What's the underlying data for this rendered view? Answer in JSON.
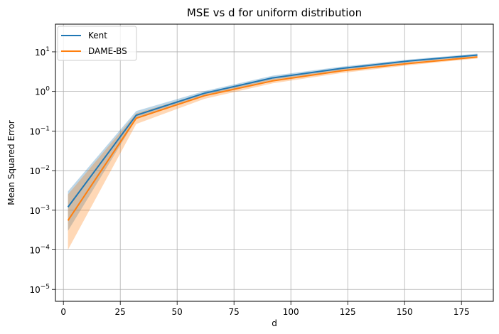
{
  "chart_data": {
    "type": "line",
    "title": "MSE vs d for uniform distribution",
    "xlabel": "d",
    "ylabel": "Mean Squared Error",
    "x": [
      2,
      32,
      62,
      92,
      122,
      152,
      182
    ],
    "xlim": [
      -3.5,
      189
    ],
    "ylim": [
      5e-06,
      50
    ],
    "yscale": "log",
    "xticks": [
      0,
      25,
      50,
      75,
      100,
      125,
      150,
      175
    ],
    "yticks": [
      1e-05,
      0.0001,
      0.001,
      0.01,
      0.1,
      1,
      10
    ],
    "ytick_labels": [
      {
        "base": "10",
        "exp": "−5"
      },
      {
        "base": "10",
        "exp": "−4"
      },
      {
        "base": "10",
        "exp": "−3"
      },
      {
        "base": "10",
        "exp": "−2"
      },
      {
        "base": "10",
        "exp": "−1"
      },
      {
        "base": "10",
        "exp": "0"
      },
      {
        "base": "10",
        "exp": "1"
      }
    ],
    "grid": true,
    "legend_position": "top-left",
    "series": [
      {
        "name": "Kent",
        "color": "#1f77b4",
        "values": [
          0.0012,
          0.25,
          0.9,
          2.2,
          3.8,
          5.9,
          8.3
        ],
        "lower": [
          0.0003,
          0.2,
          0.78,
          1.95,
          3.4,
          5.4,
          7.6
        ],
        "upper": [
          0.003,
          0.32,
          1.02,
          2.5,
          4.2,
          6.4,
          9.0
        ]
      },
      {
        "name": "DAME-BS",
        "color": "#ff7f0e",
        "values": [
          0.00055,
          0.21,
          0.78,
          1.85,
          3.3,
          5.1,
          7.4
        ],
        "lower": [
          0.0001,
          0.15,
          0.65,
          1.6,
          2.9,
          4.6,
          6.8
        ],
        "upper": [
          0.0025,
          0.28,
          0.92,
          2.1,
          3.7,
          5.6,
          8.0
        ]
      }
    ]
  }
}
